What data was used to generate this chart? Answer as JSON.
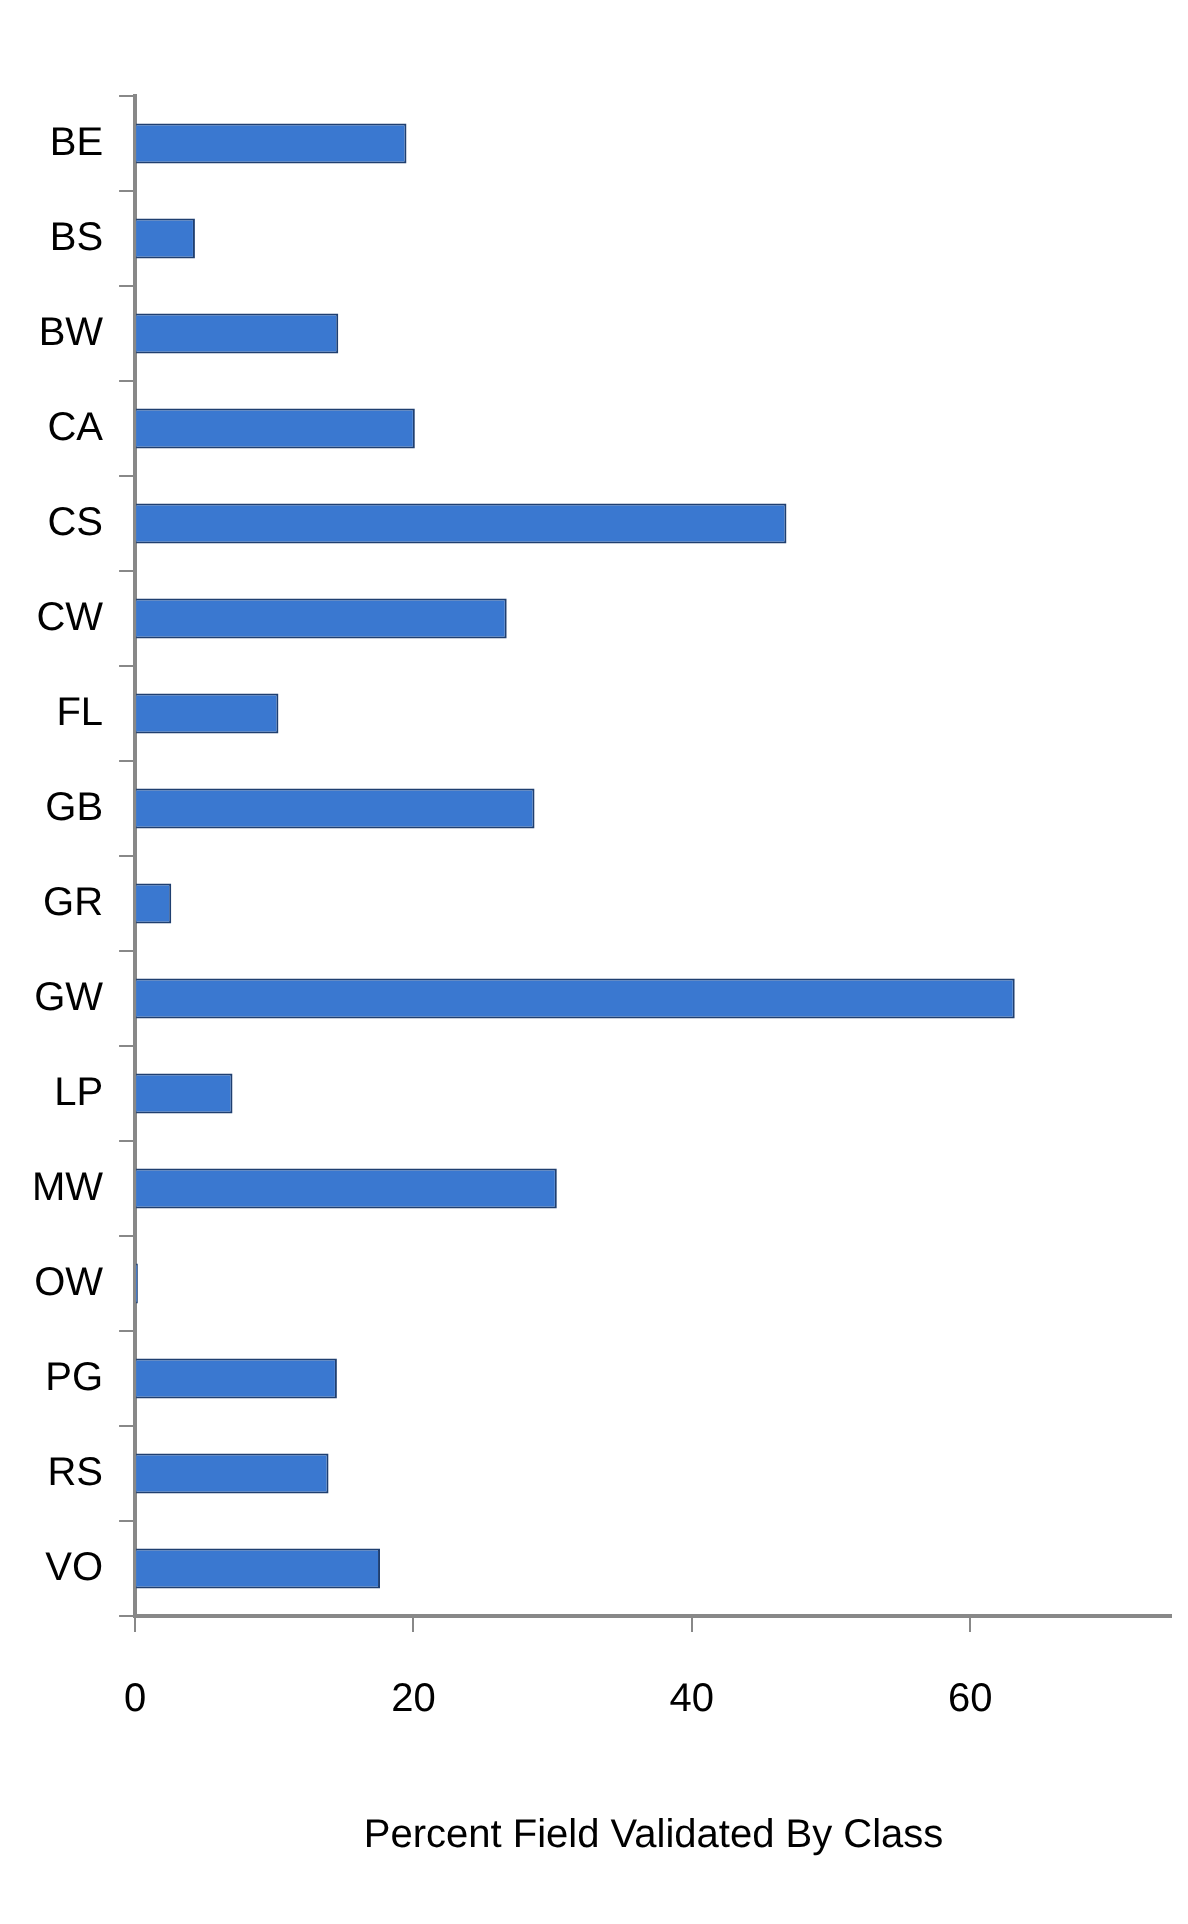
{
  "chart_data": {
    "type": "bar",
    "orientation": "horizontal",
    "xlabel": "Percent Field Validated By Class",
    "categories": [
      "BE",
      "BS",
      "BW",
      "CA",
      "CS",
      "CW",
      "FL",
      "GB",
      "GR",
      "GW",
      "LP",
      "MW",
      "OW",
      "PG",
      "RS",
      "VO"
    ],
    "values": [
      19.5,
      4.3,
      14.6,
      20.1,
      46.8,
      26.7,
      10.3,
      28.7,
      2.6,
      63.2,
      7.0,
      30.3,
      0.2,
      14.5,
      13.9,
      17.6
    ],
    "color": "#3a78d0",
    "xlim": [
      0,
      74.5
    ],
    "xticks": [
      0,
      20,
      40,
      60
    ],
    "grid": false,
    "legend": false
  }
}
